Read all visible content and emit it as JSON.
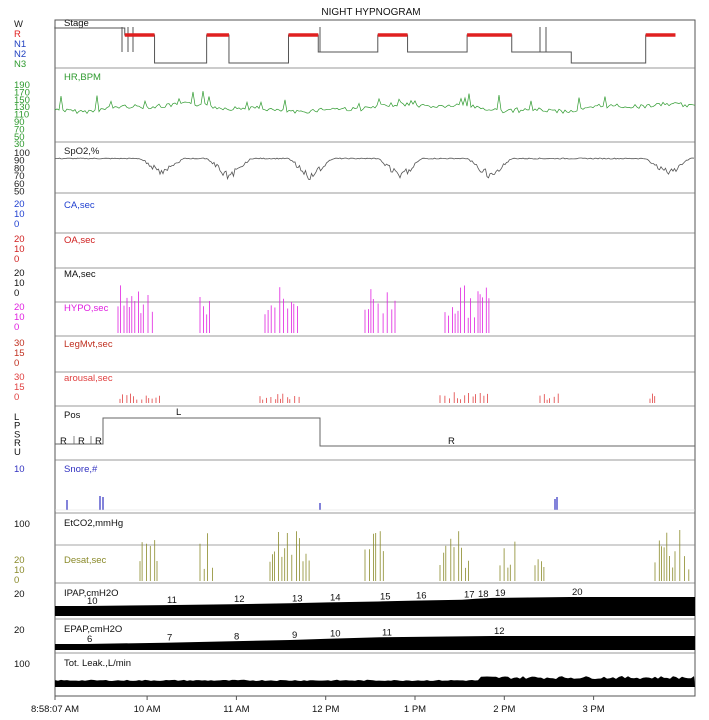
{
  "title": "NIGHT HYPNOGRAM",
  "colors": {
    "stage_line": "#555555",
    "rem": "#e02020",
    "hr": "#2e9a2e",
    "spo2": "#555555",
    "ca": "#2040d0",
    "oa": "#d02020",
    "ma": "#111111",
    "hypo": "#e020e0",
    "legmvt": "#c03020",
    "arousal": "#e04040",
    "pos": "#333333",
    "snore": "#3030c0",
    "desat": "#8a8a2a",
    "fill": "#000000"
  },
  "x_axis": {
    "ticks": [
      "8:58:07 AM",
      "10 AM",
      "11 AM",
      "12 PM",
      "1 PM",
      "2 PM",
      "3 PM"
    ]
  },
  "panels": {
    "stage": {
      "title": "Stage",
      "levels": [
        {
          "label": "W",
          "color": "#222222"
        },
        {
          "label": "R",
          "color": "#e02020"
        },
        {
          "label": "N1",
          "color": "#2040c0"
        },
        {
          "label": "N2",
          "color": "#2040c0"
        },
        {
          "label": "N3",
          "color": "#2e9a2e"
        }
      ]
    },
    "hr": {
      "title": "HR,BPM",
      "ticks": [
        "190",
        "170",
        "150",
        "130",
        "110",
        "90",
        "70",
        "50",
        "30"
      ]
    },
    "spo2": {
      "title": "SpO2,%",
      "ticks": [
        "100",
        "90",
        "80",
        "70",
        "60",
        "50"
      ]
    },
    "ca": {
      "title": "CA,sec",
      "ticks": [
        "20",
        "10",
        "0"
      ]
    },
    "oa": {
      "title": "OA,sec",
      "ticks": [
        "20",
        "10",
        "0"
      ]
    },
    "ma": {
      "title": "MA,sec",
      "ticks": [
        "20",
        "10",
        "0"
      ]
    },
    "hypo": {
      "title": "HYPO,sec",
      "ticks": [
        "20",
        "10",
        "0"
      ]
    },
    "legmvt": {
      "title": "LegMvt,sec",
      "ticks": [
        "30",
        "15",
        "0"
      ]
    },
    "arousal": {
      "title": "arousal,sec",
      "ticks": [
        "30",
        "15",
        "0"
      ]
    },
    "pos": {
      "title": "Pos",
      "ticks": [
        "L",
        "P",
        "S",
        "R",
        "U"
      ],
      "labels": [
        "R",
        "R",
        "R",
        "L",
        "R"
      ]
    },
    "snore": {
      "title": "Snore,#",
      "ticks": [
        "10"
      ]
    },
    "etco2": {
      "title": "EtCO2,mmHg",
      "ticks": [
        "100"
      ]
    },
    "desat": {
      "title": "Desat,sec",
      "ticks": [
        "20",
        "10",
        "0"
      ]
    },
    "ipap": {
      "title": "IPAP,cmH2O",
      "ticks": [
        "20"
      ],
      "values": [
        "10",
        "11",
        "12",
        "13",
        "14",
        "15",
        "16",
        "17",
        "18",
        "19",
        "20"
      ]
    },
    "epap": {
      "title": "EPAP,cmH2O",
      "ticks": [
        "20"
      ],
      "values": [
        "6",
        "7",
        "8",
        "9",
        "10",
        "11",
        "12"
      ]
    },
    "leak": {
      "title": "Tot. Leak.,L/min",
      "ticks": [
        "100"
      ]
    }
  },
  "chart_data": {
    "type": "line",
    "title": "NIGHT HYPNOGRAM",
    "x": {
      "start": "8:58:07 AM",
      "ticks": [
        "10 AM",
        "11 AM",
        "12 PM",
        "1 PM",
        "2 PM",
        "3 PM"
      ]
    },
    "series": [
      {
        "name": "Stage",
        "levels": [
          "W",
          "R",
          "N1",
          "N2",
          "N3"
        ],
        "segments": [
          {
            "from": "8:58 AM",
            "to": "9:45 AM",
            "stage": "W"
          },
          {
            "from": "9:45 AM",
            "to": "10:05 AM",
            "stage": "R"
          },
          {
            "from": "10:05 AM",
            "to": "10:40 AM",
            "stage": "N3"
          },
          {
            "from": "10:40 AM",
            "to": "10:55 AM",
            "stage": "R"
          },
          {
            "from": "10:55 AM",
            "to": "11:35 AM",
            "stage": "N3"
          },
          {
            "from": "11:35 AM",
            "to": "11:55 AM",
            "stage": "R"
          },
          {
            "from": "11:55 AM",
            "to": "12:35 PM",
            "stage": "N2"
          },
          {
            "from": "12:35 PM",
            "to": "12:55 PM",
            "stage": "R"
          },
          {
            "from": "12:55 PM",
            "to": "1:35 PM",
            "stage": "N2"
          },
          {
            "from": "1:35 PM",
            "to": "2:05 PM",
            "stage": "R"
          },
          {
            "from": "2:05 PM",
            "to": "2:45 PM",
            "stage": "N2"
          },
          {
            "from": "2:45 PM",
            "to": "3:35 PM",
            "stage": "N3"
          },
          {
            "from": "3:35 PM",
            "to": "3:55 PM",
            "stage": "R"
          }
        ]
      },
      {
        "name": "HR,BPM",
        "range": [
          30,
          190
        ],
        "approx_mean": 95
      },
      {
        "name": "SpO2,%",
        "range": [
          50,
          100
        ],
        "baseline": 92,
        "dips": [
          {
            "at": "10:10 AM",
            "min": 65
          },
          {
            "at": "10:55 AM",
            "min": 58
          },
          {
            "at": "11:50 AM",
            "min": 57
          },
          {
            "at": "12:50 PM",
            "min": 57
          },
          {
            "at": "1:50 PM",
            "min": 58
          },
          {
            "at": "3:50 PM",
            "min": 62
          }
        ]
      },
      {
        "name": "Pos",
        "segments": [
          {
            "from": "8:58 AM",
            "to": "9:30 AM",
            "pos": "R"
          },
          {
            "from": "9:30 AM",
            "to": "12:05 PM",
            "pos": "L"
          },
          {
            "from": "12:05 PM",
            "to": "3:59 PM",
            "pos": "R"
          }
        ]
      },
      {
        "name": "IPAP,cmH2O",
        "steps": [
          10,
          11,
          12,
          13,
          14,
          15,
          16,
          17,
          18,
          19,
          20
        ]
      },
      {
        "name": "EPAP,cmH2O",
        "steps": [
          6,
          7,
          8,
          9,
          10,
          11,
          12
        ]
      }
    ]
  }
}
